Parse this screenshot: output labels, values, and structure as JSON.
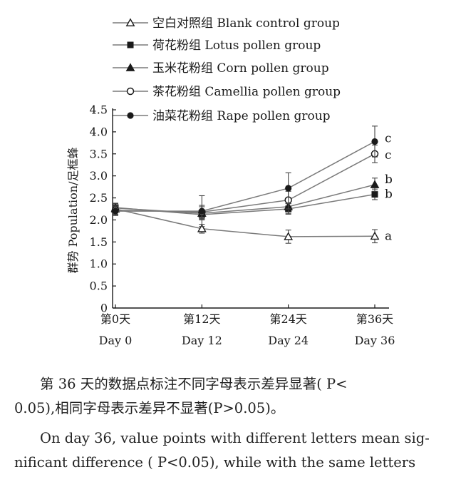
{
  "chart_data": {
    "type": "line",
    "ylabel": "群势 Population/足框蜂",
    "ylim": [
      0,
      4.5
    ],
    "yticks": [
      0,
      0.5,
      1.0,
      1.5,
      2.0,
      2.5,
      3.0,
      3.5,
      4.0,
      4.5
    ],
    "ytick_labels": [
      "0",
      "0.5",
      "1.0",
      "1.5",
      "2.0",
      "2.5",
      "3.0",
      "3.5",
      "4.0",
      "4.5"
    ],
    "x": [
      0,
      12,
      24,
      36
    ],
    "categories_zh": [
      "第0天",
      "第12天",
      "第24天",
      "第36天"
    ],
    "categories_en": [
      "Day 0",
      "Day 12",
      "Day 24",
      "Day 36"
    ],
    "grid": false,
    "legend_position": "top-left",
    "series": [
      {
        "name": "空白对照组 Blank control group",
        "marker": "triangle-open",
        "values": [
          2.25,
          1.8,
          1.62,
          1.63
        ],
        "errors": [
          0.12,
          0.1,
          0.15,
          0.15
        ],
        "label_day36": "a"
      },
      {
        "name": "荷花粉组 Lotus pollen group",
        "marker": "square-filled",
        "values": [
          2.28,
          2.12,
          2.25,
          2.58
        ],
        "errors": [
          0.1,
          0.1,
          0.12,
          0.12
        ],
        "label_day36": "b"
      },
      {
        "name": "玉米花粉组 Corn pollen group",
        "marker": "triangle-filled",
        "values": [
          2.27,
          2.15,
          2.3,
          2.8
        ],
        "errors": [
          0.1,
          0.15,
          0.15,
          0.15
        ],
        "label_day36": "b"
      },
      {
        "name": "茶花粉组 Camellia pollen group",
        "marker": "circle-open",
        "values": [
          2.22,
          2.18,
          2.45,
          3.5
        ],
        "errors": [
          0.1,
          0.15,
          0.2,
          0.2
        ],
        "label_day36": "c"
      },
      {
        "name": "油菜花粉组 Rape pollen group",
        "marker": "circle-filled",
        "values": [
          2.2,
          2.2,
          2.72,
          3.78
        ],
        "errors": [
          0.1,
          0.35,
          0.35,
          0.35
        ],
        "label_day36": "c"
      }
    ],
    "colors": {
      "line": "#7a7a7a",
      "marker": "#1a1a1a",
      "error_bar": "#444444"
    }
  },
  "caption": {
    "zh_line1": "第 36 天的数据点标注不同字母表示差异显著( P<",
    "zh_line2": "0.05),相同字母表示差异不显著(P>0.05)。",
    "en_line1": "On day 36, value points with different letters mean sig-",
    "en_line2": "nificant difference ( P<0.05), while with the same letters"
  }
}
